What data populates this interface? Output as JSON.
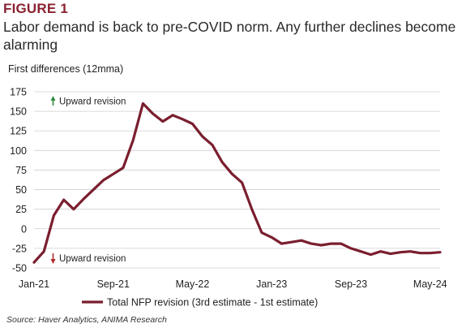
{
  "figure_label": "FIGURE 1",
  "title": "Labor demand is back to pre-COVID norm. Any further declines become alarming",
  "source": "Source: Haver Analytics, ANIMA Research",
  "chart_data": {
    "type": "line",
    "ylabel": "First differences (12mma)",
    "xlabel": "",
    "ylim": [
      -50,
      175
    ],
    "yticks": [
      -50,
      -25,
      0,
      25,
      50,
      75,
      100,
      125,
      150,
      175
    ],
    "xlim": [
      "2021-01",
      "2024-06"
    ],
    "xticks": [
      {
        "label": "Jan-21",
        "x": "2021-01"
      },
      {
        "label": "Sep-21",
        "x": "2021-09"
      },
      {
        "label": "May-22",
        "x": "2022-05"
      },
      {
        "label": "Jan-23",
        "x": "2023-01"
      },
      {
        "label": "Sep-23",
        "x": "2023-09"
      },
      {
        "label": "May-24",
        "x": "2024-05"
      }
    ],
    "grid": true,
    "legend_position": "bottom",
    "color": "#7a1e2e",
    "annotations": [
      {
        "text": "Upward revision",
        "direction": "up",
        "color": "#2e8b3c"
      },
      {
        "text": "Upward revision",
        "direction": "down",
        "color": "#b02a2a"
      }
    ],
    "series": [
      {
        "name": "Total NFP revision (3rd estimate - 1st estimate)",
        "x": [
          "2021-01",
          "2021-02",
          "2021-03",
          "2021-04",
          "2021-05",
          "2021-06",
          "2021-07",
          "2021-08",
          "2021-09",
          "2021-10",
          "2021-11",
          "2021-12",
          "2022-01",
          "2022-02",
          "2022-03",
          "2022-04",
          "2022-05",
          "2022-06",
          "2022-07",
          "2022-08",
          "2022-09",
          "2022-10",
          "2022-11",
          "2022-12",
          "2023-01",
          "2023-02",
          "2023-03",
          "2023-04",
          "2023-05",
          "2023-06",
          "2023-07",
          "2023-08",
          "2023-09",
          "2023-10",
          "2023-11",
          "2023-12",
          "2024-01",
          "2024-02",
          "2024-03",
          "2024-04",
          "2024-05",
          "2024-06"
        ],
        "values": [
          -43,
          -29,
          17,
          37,
          25,
          38,
          50,
          62,
          70,
          78,
          113,
          160,
          147,
          137,
          145,
          140,
          134,
          118,
          107,
          85,
          70,
          59,
          25,
          -5,
          -11,
          -19,
          -17,
          -15,
          -19,
          -21,
          -19,
          -19,
          -25,
          -29,
          -33,
          -29,
          -32,
          -30,
          -29,
          -31,
          -31,
          -30
        ]
      }
    ]
  }
}
